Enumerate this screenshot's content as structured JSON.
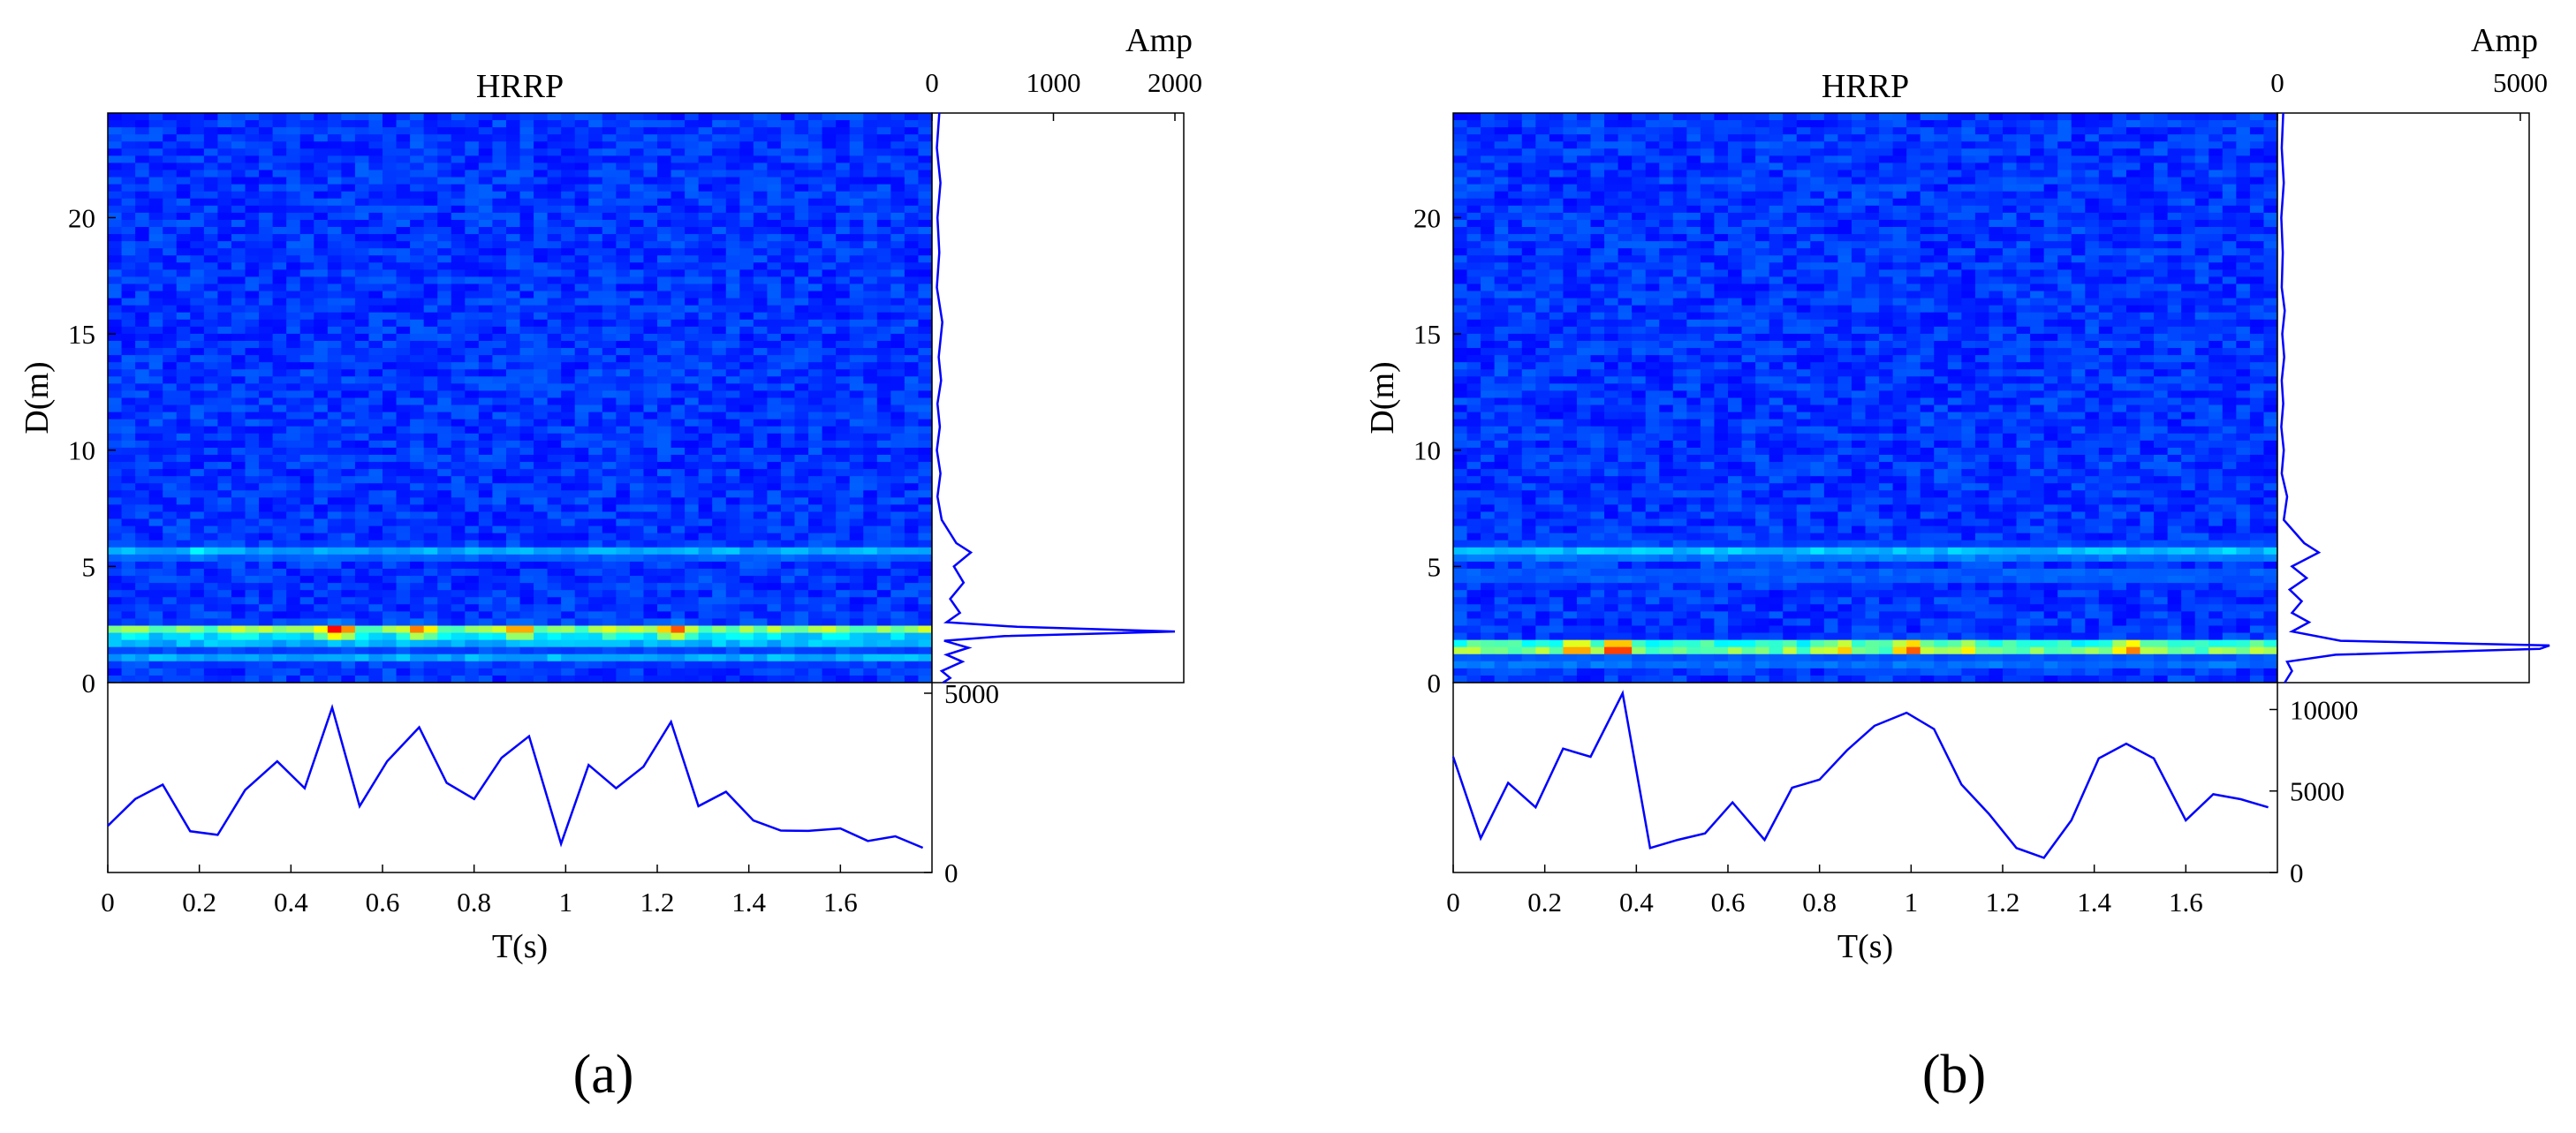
{
  "chart_data": [
    {
      "panel_label": "(a)",
      "heatmap": {
        "type": "heatmap",
        "title": "HRRP",
        "xlabel": "T(s)",
        "ylabel": "D(m)",
        "xlim": [
          0,
          1.8
        ],
        "ylim": [
          0,
          24.5
        ],
        "x_ticks": [
          "0",
          "0.2",
          "0.4",
          "0.6",
          "0.8",
          "1",
          "1.2",
          "1.4",
          "1.6"
        ],
        "y_ticks": [
          "0",
          "5",
          "10",
          "15",
          "20"
        ],
        "bands": [
          {
            "d": 2.2,
            "width": 0.25,
            "base": 0.45
          },
          {
            "d": 1.6,
            "width": 0.2,
            "base": 0.22
          },
          {
            "d": 1.0,
            "width": 0.2,
            "base": 0.2
          },
          {
            "d": 5.6,
            "width": 0.3,
            "base": 0.18
          }
        ],
        "hot_spots": [
          {
            "t": 0.05,
            "d": 2.2,
            "level": 0.5
          },
          {
            "t": 0.3,
            "d": 2.2,
            "level": 0.55
          },
          {
            "t": 0.5,
            "d": 2.2,
            "level": 0.95
          },
          {
            "t": 0.68,
            "d": 2.2,
            "level": 0.8
          },
          {
            "t": 0.9,
            "d": 2.2,
            "level": 0.8
          },
          {
            "t": 1.1,
            "d": 2.2,
            "level": 0.6
          },
          {
            "t": 1.24,
            "d": 2.2,
            "level": 0.85
          },
          {
            "t": 1.4,
            "d": 2.2,
            "level": 0.5
          },
          {
            "t": 0.2,
            "d": 5.6,
            "level": 0.3
          }
        ]
      },
      "range_profile": {
        "type": "line",
        "xlabel": "Amp",
        "xlim": [
          0,
          2000
        ],
        "x_ticks": [
          "0",
          "1000",
          "2000"
        ],
        "points": [
          [
            60,
            24.5
          ],
          [
            40,
            23
          ],
          [
            70,
            21.5
          ],
          [
            45,
            20
          ],
          [
            60,
            18.5
          ],
          [
            40,
            17
          ],
          [
            85,
            15.5
          ],
          [
            55,
            14
          ],
          [
            75,
            13
          ],
          [
            45,
            12
          ],
          [
            65,
            11
          ],
          [
            40,
            10
          ],
          [
            70,
            9
          ],
          [
            45,
            8
          ],
          [
            80,
            7
          ],
          [
            200,
            6
          ],
          [
            320,
            5.6
          ],
          [
            180,
            5
          ],
          [
            260,
            4.3
          ],
          [
            150,
            3.6
          ],
          [
            230,
            3
          ],
          [
            120,
            2.6
          ],
          [
            700,
            2.4
          ],
          [
            2000,
            2.2
          ],
          [
            600,
            2
          ],
          [
            100,
            1.8
          ],
          [
            300,
            1.5
          ],
          [
            120,
            1.2
          ],
          [
            250,
            0.9
          ],
          [
            80,
            0.5
          ],
          [
            150,
            0.2
          ],
          [
            90,
            0
          ]
        ]
      },
      "time_profile": {
        "type": "line",
        "ylim": [
          0,
          5000
        ],
        "y_ticks": [
          "0",
          "5000"
        ],
        "x": [
          0,
          0.06,
          0.12,
          0.18,
          0.24,
          0.3,
          0.37,
          0.43,
          0.49,
          0.55,
          0.61,
          0.68,
          0.74,
          0.8,
          0.86,
          0.92,
          0.99,
          1.05,
          1.11,
          1.17,
          1.23,
          1.29,
          1.35,
          1.41,
          1.47,
          1.53,
          1.6,
          1.66,
          1.72,
          1.78
        ],
        "values": [
          1300,
          2050,
          2450,
          1150,
          1050,
          2300,
          3100,
          2350,
          4600,
          1850,
          3100,
          4050,
          2500,
          2050,
          3200,
          3800,
          800,
          3000,
          2350,
          2950,
          4200,
          1850,
          2250,
          1450,
          1170,
          1160,
          1230,
          880,
          1010,
          690
        ]
      }
    },
    {
      "panel_label": "(b)",
      "heatmap": {
        "type": "heatmap",
        "title": "HRRP",
        "xlabel": "T(s)",
        "ylabel": "D(m)",
        "xlim": [
          0,
          1.8
        ],
        "ylim": [
          0,
          24.5
        ],
        "x_ticks": [
          "0",
          "0.2",
          "0.4",
          "0.6",
          "0.8",
          "1",
          "1.2",
          "1.4",
          "1.6"
        ],
        "y_ticks": [
          "0",
          "5",
          "10",
          "15",
          "20"
        ],
        "bands": [
          {
            "d": 1.5,
            "width": 0.28,
            "base": 0.45
          },
          {
            "d": 0.9,
            "width": 0.2,
            "base": 0.18
          },
          {
            "d": 5.6,
            "width": 0.35,
            "base": 0.2
          },
          {
            "d": 4.6,
            "width": 0.3,
            "base": 0.12
          }
        ],
        "hot_spots": [
          {
            "t": 0.05,
            "d": 1.5,
            "level": 0.6
          },
          {
            "t": 0.27,
            "d": 1.5,
            "level": 0.85
          },
          {
            "t": 0.36,
            "d": 1.5,
            "level": 1.0
          },
          {
            "t": 0.56,
            "d": 1.5,
            "level": 0.45
          },
          {
            "t": 0.85,
            "d": 1.5,
            "level": 0.75
          },
          {
            "t": 1.0,
            "d": 1.5,
            "level": 0.9
          },
          {
            "t": 1.12,
            "d": 1.5,
            "level": 0.7
          },
          {
            "t": 1.48,
            "d": 1.5,
            "level": 0.85
          },
          {
            "t": 1.6,
            "d": 1.5,
            "level": 0.5
          },
          {
            "t": 1.75,
            "d": 1.5,
            "level": 0.6
          }
        ]
      },
      "range_profile": {
        "type": "line",
        "xlabel": "Amp",
        "xlim": [
          0,
          5000
        ],
        "x_ticks": [
          "0",
          "5000"
        ],
        "points": [
          [
            120,
            24.5
          ],
          [
            90,
            23
          ],
          [
            130,
            21.5
          ],
          [
            80,
            20
          ],
          [
            110,
            18.5
          ],
          [
            90,
            17
          ],
          [
            150,
            16
          ],
          [
            100,
            15
          ],
          [
            140,
            14
          ],
          [
            90,
            13
          ],
          [
            120,
            12
          ],
          [
            80,
            11
          ],
          [
            130,
            10
          ],
          [
            90,
            9
          ],
          [
            200,
            8
          ],
          [
            130,
            7
          ],
          [
            550,
            6
          ],
          [
            850,
            5.6
          ],
          [
            300,
            5
          ],
          [
            600,
            4.5
          ],
          [
            250,
            4
          ],
          [
            500,
            3.5
          ],
          [
            300,
            3
          ],
          [
            650,
            2.6
          ],
          [
            300,
            2.2
          ],
          [
            1300,
            1.8
          ],
          [
            5600,
            1.6
          ],
          [
            5400,
            1.45
          ],
          [
            1200,
            1.2
          ],
          [
            200,
            0.9
          ],
          [
            300,
            0.5
          ],
          [
            150,
            0
          ]
        ]
      },
      "time_profile": {
        "type": "line",
        "ylim": [
          0,
          11000
        ],
        "y_ticks": [
          "0",
          "5000",
          "10000"
        ],
        "x": [
          0,
          0.06,
          0.12,
          0.18,
          0.24,
          0.3,
          0.37,
          0.43,
          0.49,
          0.55,
          0.61,
          0.68,
          0.74,
          0.8,
          0.86,
          0.92,
          0.99,
          1.05,
          1.11,
          1.17,
          1.23,
          1.29,
          1.35,
          1.41,
          1.47,
          1.53,
          1.6,
          1.66,
          1.72,
          1.78
        ],
        "values": [
          7100,
          2100,
          5500,
          4000,
          7600,
          7100,
          11000,
          1500,
          2000,
          2400,
          4300,
          2000,
          5200,
          5700,
          7500,
          9000,
          9800,
          8800,
          5400,
          3600,
          1500,
          900,
          3200,
          7000,
          7900,
          7000,
          3200,
          4800,
          4500,
          4000
        ]
      }
    }
  ]
}
